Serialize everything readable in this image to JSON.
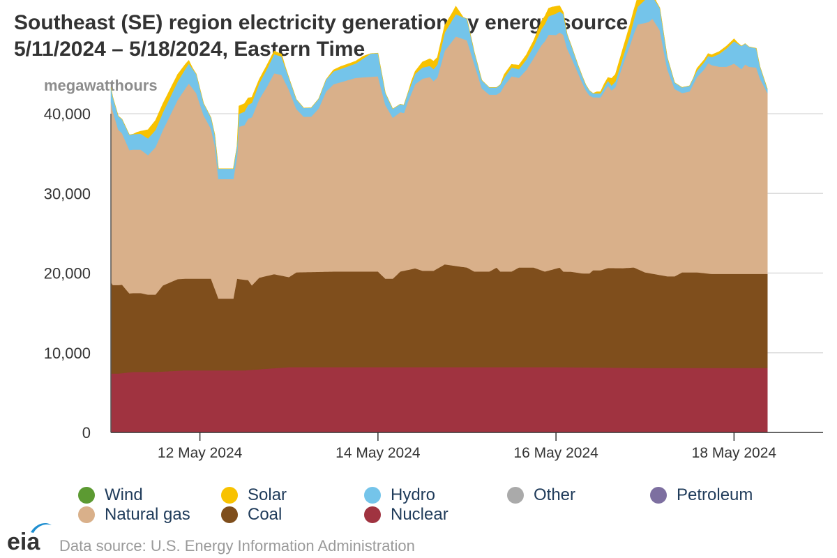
{
  "header": {
    "title_line1": "Southeast (SE) region electricity generation by energy source",
    "title_line2": "5/11/2024 – 5/18/2024, Eastern Time"
  },
  "footer": {
    "logo_text": "eia",
    "source": "Data source: U.S. Energy Information Administration"
  },
  "chart_data": {
    "type": "area",
    "stacked": true,
    "title": "Southeast (SE) region electricity generation by energy source",
    "subtitle": "5/11/2024 – 5/18/2024, Eastern Time",
    "ylabel": "megawatthours",
    "xlabel": "",
    "ylim": [
      0,
      40000
    ],
    "yticks": [
      0,
      10000,
      20000,
      30000,
      40000
    ],
    "ytick_labels": [
      "0",
      "10,000",
      "20,000",
      "30,000",
      "40,000"
    ],
    "xlim": [
      0,
      192
    ],
    "xticks": [
      {
        "x": 24,
        "label": "12 May 2024"
      },
      {
        "x": 72,
        "label": "14 May 2024"
      },
      {
        "x": 120,
        "label": "16 May 2024"
      },
      {
        "x": 168,
        "label": "18 May 2024"
      }
    ],
    "x_unit": "hours since 5/11/2024 00:00",
    "grid": true,
    "legend_position": "bottom",
    "legend": [
      {
        "name": "Wind",
        "color": "#5c9a32"
      },
      {
        "name": "Solar",
        "color": "#f8c200"
      },
      {
        "name": "Hydro",
        "color": "#74c4ea"
      },
      {
        "name": "Other",
        "color": "#aaaaaa"
      },
      {
        "name": "Petroleum",
        "color": "#7d6fa0"
      },
      {
        "name": "Natural gas",
        "color": "#d9b08a"
      },
      {
        "name": "Coal",
        "color": "#7f4e1c"
      },
      {
        "name": "Nuclear",
        "color": "#a03340"
      }
    ],
    "series_points": {
      "Nuclear": [
        [
          0,
          7400
        ],
        [
          2,
          7400
        ],
        [
          6,
          7600
        ],
        [
          12,
          7600
        ],
        [
          20,
          7800
        ],
        [
          24,
          7800
        ],
        [
          30,
          7800
        ],
        [
          36,
          7800
        ],
        [
          42,
          8000
        ],
        [
          48,
          8200
        ],
        [
          60,
          8200
        ],
        [
          72,
          8200
        ],
        [
          96,
          8200
        ],
        [
          120,
          8200
        ],
        [
          144,
          8100
        ],
        [
          169,
          8100
        ]
      ],
      "Coal": [
        [
          0,
          11500
        ],
        [
          0.5,
          11100
        ],
        [
          3,
          11100
        ],
        [
          4,
          10500
        ],
        [
          5,
          9900
        ],
        [
          8,
          9900
        ],
        [
          10,
          9700
        ],
        [
          12,
          9700
        ],
        [
          14,
          10800
        ],
        [
          18,
          11500
        ],
        [
          24,
          11500
        ],
        [
          27,
          11500
        ],
        [
          29,
          9000
        ],
        [
          33,
          9000
        ],
        [
          34,
          11500
        ],
        [
          37,
          11300
        ],
        [
          38,
          10600
        ],
        [
          40,
          11500
        ],
        [
          44,
          11800
        ],
        [
          48,
          11300
        ],
        [
          50,
          11900
        ],
        [
          60,
          12000
        ],
        [
          72,
          12000
        ],
        [
          74,
          11100
        ],
        [
          76,
          11100
        ],
        [
          78,
          12000
        ],
        [
          82,
          12400
        ],
        [
          84,
          12100
        ],
        [
          87,
          12100
        ],
        [
          90,
          12900
        ],
        [
          96,
          12500
        ],
        [
          98,
          12000
        ],
        [
          102,
          12000
        ],
        [
          104,
          12500
        ],
        [
          105,
          12000
        ],
        [
          108,
          12000
        ],
        [
          110,
          12500
        ],
        [
          114,
          12500
        ],
        [
          117,
          12000
        ],
        [
          121,
          12500
        ],
        [
          122,
          12000
        ],
        [
          124,
          12000
        ],
        [
          127,
          11800
        ],
        [
          129,
          11800
        ],
        [
          130,
          12200
        ],
        [
          132,
          12200
        ],
        [
          134,
          12500
        ],
        [
          138,
          12500
        ],
        [
          141,
          12600
        ],
        [
          144,
          12000
        ],
        [
          150,
          11500
        ],
        [
          152,
          11500
        ],
        [
          154,
          12000
        ],
        [
          158,
          12000
        ],
        [
          162,
          11800
        ],
        [
          166,
          11800
        ],
        [
          169,
          11800
        ]
      ],
      "Natural gas": [
        [
          0,
          22600
        ],
        [
          2,
          19500
        ],
        [
          5,
          18000
        ],
        [
          8,
          18000
        ],
        [
          10,
          17500
        ],
        [
          14,
          19500
        ],
        [
          18,
          22500
        ],
        [
          21,
          24500
        ],
        [
          23,
          23300
        ],
        [
          25,
          20500
        ],
        [
          27,
          18800
        ],
        [
          28,
          18000
        ],
        [
          29,
          15000
        ],
        [
          33,
          15000
        ],
        [
          34,
          15300
        ],
        [
          34.5,
          19100
        ],
        [
          36,
          19400
        ],
        [
          38,
          21100
        ],
        [
          42,
          23700
        ],
        [
          44,
          25200
        ],
        [
          46,
          25200
        ],
        [
          48,
          23500
        ],
        [
          50,
          20500
        ],
        [
          52,
          19500
        ],
        [
          54,
          19500
        ],
        [
          56,
          20500
        ],
        [
          58,
          22600
        ],
        [
          60,
          23500
        ],
        [
          66,
          24300
        ],
        [
          72,
          24500
        ],
        [
          74,
          21800
        ],
        [
          76,
          20200
        ],
        [
          78,
          20000
        ],
        [
          79,
          19800
        ],
        [
          80,
          21000
        ],
        [
          82,
          23100
        ],
        [
          84,
          24100
        ],
        [
          86,
          24300
        ],
        [
          87,
          23800
        ],
        [
          88,
          24000
        ],
        [
          90,
          26800
        ],
        [
          93,
          28800
        ],
        [
          96,
          28500
        ],
        [
          98,
          26000
        ],
        [
          100,
          23000
        ],
        [
          102,
          22200
        ],
        [
          104,
          21700
        ],
        [
          106,
          23300
        ],
        [
          108,
          24500
        ],
        [
          110,
          23800
        ],
        [
          112,
          24800
        ],
        [
          114,
          26300
        ],
        [
          116,
          28200
        ],
        [
          118,
          29600
        ],
        [
          120,
          29300
        ],
        [
          122,
          29700
        ],
        [
          123,
          28000
        ],
        [
          126,
          25000
        ],
        [
          128,
          23000
        ],
        [
          130,
          21700
        ],
        [
          132,
          21700
        ],
        [
          134,
          22900
        ],
        [
          135,
          22300
        ],
        [
          136,
          22700
        ],
        [
          138,
          25500
        ],
        [
          140,
          28000
        ],
        [
          142,
          30700
        ],
        [
          144,
          31300
        ],
        [
          145,
          31500
        ],
        [
          146,
          32000
        ],
        [
          148,
          30700
        ],
        [
          150,
          26000
        ],
        [
          152,
          23500
        ],
        [
          154,
          22500
        ],
        [
          156,
          22700
        ],
        [
          158,
          24500
        ],
        [
          160,
          25600
        ],
        [
          161,
          26400
        ],
        [
          162,
          26200
        ],
        [
          164,
          26000
        ],
        [
          166,
          26000
        ],
        [
          168,
          26400
        ],
        [
          170,
          25700
        ],
        [
          171,
          26300
        ],
        [
          172,
          26000
        ],
        [
          174,
          25900
        ],
        [
          175,
          24500
        ],
        [
          177,
          22700
        ]
      ],
      "Hydro": [
        [
          0,
          1800
        ],
        [
          2,
          1700
        ],
        [
          5,
          1900
        ],
        [
          8,
          2000
        ],
        [
          10,
          2100
        ],
        [
          14,
          2200
        ],
        [
          18,
          2300
        ],
        [
          21,
          2500
        ],
        [
          23,
          2400
        ],
        [
          25,
          1500
        ],
        [
          27,
          1400
        ],
        [
          29,
          1300
        ],
        [
          33,
          1300
        ],
        [
          34,
          1300
        ],
        [
          34.5,
          1600
        ],
        [
          36,
          1700
        ],
        [
          38,
          1800
        ],
        [
          42,
          2200
        ],
        [
          44,
          2400
        ],
        [
          46,
          2300
        ],
        [
          48,
          1500
        ],
        [
          50,
          1200
        ],
        [
          52,
          1100
        ],
        [
          54,
          1100
        ],
        [
          56,
          1200
        ],
        [
          58,
          1500
        ],
        [
          60,
          1600
        ],
        [
          66,
          1800
        ],
        [
          70,
          2900
        ],
        [
          72,
          2900
        ],
        [
          74,
          1500
        ],
        [
          76,
          1100
        ],
        [
          78,
          1000
        ],
        [
          79,
          1000
        ],
        [
          80,
          1100
        ],
        [
          82,
          1300
        ],
        [
          84,
          1400
        ],
        [
          86,
          1400
        ],
        [
          87,
          1500
        ],
        [
          88,
          1600
        ],
        [
          90,
          2300
        ],
        [
          93,
          2800
        ],
        [
          96,
          2700
        ],
        [
          98,
          1500
        ],
        [
          100,
          1000
        ],
        [
          102,
          900
        ],
        [
          104,
          900
        ],
        [
          106,
          1000
        ],
        [
          108,
          1100
        ],
        [
          110,
          1100
        ],
        [
          112,
          1300
        ],
        [
          114,
          1500
        ],
        [
          116,
          2000
        ],
        [
          118,
          2300
        ],
        [
          120,
          2700
        ],
        [
          122,
          2600
        ],
        [
          123,
          1800
        ],
        [
          126,
          1000
        ],
        [
          128,
          700
        ],
        [
          130,
          500
        ],
        [
          132,
          500
        ],
        [
          134,
          600
        ],
        [
          135,
          600
        ],
        [
          136,
          700
        ],
        [
          138,
          900
        ],
        [
          140,
          1300
        ],
        [
          142,
          2200
        ],
        [
          144,
          2900
        ],
        [
          145,
          3000
        ],
        [
          146,
          2800
        ],
        [
          148,
          2800
        ],
        [
          150,
          1500
        ],
        [
          152,
          800
        ],
        [
          154,
          700
        ],
        [
          156,
          700
        ],
        [
          158,
          800
        ],
        [
          160,
          900
        ],
        [
          161,
          900
        ],
        [
          162,
          1000
        ],
        [
          164,
          1600
        ],
        [
          166,
          2300
        ],
        [
          168,
          2800
        ],
        [
          170,
          2900
        ],
        [
          171,
          2600
        ],
        [
          172,
          2500
        ],
        [
          174,
          2400
        ],
        [
          175,
          1500
        ],
        [
          177,
          500
        ]
      ],
      "Solar": [
        [
          0,
          0
        ],
        [
          6,
          0
        ],
        [
          7,
          200
        ],
        [
          8,
          300
        ],
        [
          10,
          1100
        ],
        [
          12,
          1200
        ],
        [
          14,
          1100
        ],
        [
          16,
          1000
        ],
        [
          18,
          900
        ],
        [
          20,
          600
        ],
        [
          21,
          400
        ],
        [
          22,
          100
        ],
        [
          23,
          0
        ],
        [
          33,
          0
        ],
        [
          34,
          0
        ],
        [
          34.5,
          1000
        ],
        [
          36,
          1000
        ],
        [
          38,
          700
        ],
        [
          40,
          500
        ],
        [
          42,
          500
        ],
        [
          44,
          400
        ],
        [
          46,
          300
        ],
        [
          47,
          100
        ],
        [
          48,
          0
        ],
        [
          58,
          0
        ],
        [
          60,
          200
        ],
        [
          62,
          300
        ],
        [
          64,
          300
        ],
        [
          66,
          300
        ],
        [
          68,
          300
        ],
        [
          70,
          0
        ],
        [
          80,
          0
        ],
        [
          81,
          300
        ],
        [
          82,
          300
        ],
        [
          83,
          500
        ],
        [
          84,
          700
        ],
        [
          86,
          900
        ],
        [
          87,
          1000
        ],
        [
          88,
          900
        ],
        [
          90,
          900
        ],
        [
          92,
          900
        ],
        [
          93,
          1000
        ],
        [
          94,
          500
        ],
        [
          95,
          0
        ],
        [
          105,
          0
        ],
        [
          106,
          400
        ],
        [
          108,
          400
        ],
        [
          110,
          500
        ],
        [
          112,
          600
        ],
        [
          114,
          700
        ],
        [
          116,
          1000
        ],
        [
          118,
          1000
        ],
        [
          119,
          1000
        ],
        [
          120,
          900
        ],
        [
          121,
          700
        ],
        [
          122,
          200
        ],
        [
          123,
          0
        ],
        [
          130,
          0
        ],
        [
          131,
          200
        ],
        [
          132,
          200
        ],
        [
          133,
          400
        ],
        [
          134,
          400
        ],
        [
          135,
          900
        ],
        [
          136,
          900
        ],
        [
          138,
          1100
        ],
        [
          140,
          1300
        ],
        [
          142,
          1200
        ],
        [
          144,
          1100
        ],
        [
          145,
          1000
        ],
        [
          146,
          700
        ],
        [
          147,
          100
        ],
        [
          148,
          0
        ],
        [
          157,
          0
        ],
        [
          158,
          300
        ],
        [
          160,
          300
        ],
        [
          162,
          300
        ],
        [
          164,
          300
        ],
        [
          166,
          300
        ],
        [
          168,
          300
        ],
        [
          169,
          100
        ],
        [
          170,
          0
        ],
        [
          177,
          0
        ]
      ]
    }
  }
}
